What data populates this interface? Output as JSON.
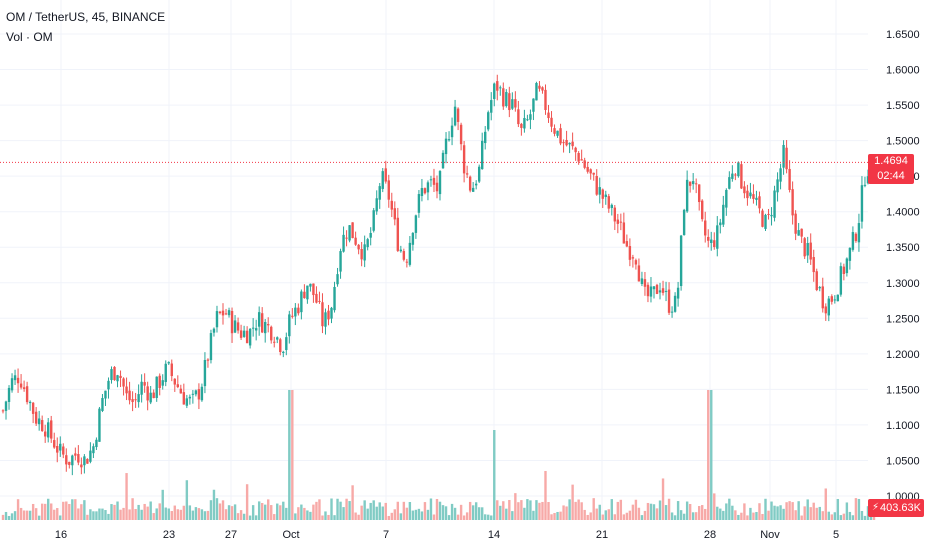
{
  "legend": {
    "symbol_line": "OM / TetherUS, 45, BINANCE",
    "volume_line": "Vol · OM"
  },
  "price_scale": {
    "ticks": [
      "1.6500",
      "1.6000",
      "1.5500",
      "1.5000",
      "1.4500",
      "1.4000",
      "1.3500",
      "1.3000",
      "1.2500",
      "1.2000",
      "1.1500",
      "1.1000",
      "1.0500",
      "1.0000"
    ]
  },
  "time_scale": {
    "ticks": [
      "16",
      "23",
      "27",
      "Oct",
      "7",
      "14",
      "21",
      "28",
      "Nov",
      "5"
    ]
  },
  "last_price": {
    "value": "1.4694",
    "countdown": "02:44",
    "line_value": 1.4694
  },
  "last_volume": {
    "value": "403.63K"
  },
  "colors": {
    "up": "#26a69a",
    "down": "#ef5350",
    "up_volume": "#80cbc4",
    "down_volume": "#f7a9a7",
    "grid": "#f0f3fa",
    "last_price": "#f23645"
  },
  "chart_data": {
    "type": "candlestick",
    "title": "OM / TetherUS, 45, BINANCE",
    "ylim": [
      0.975,
      1.675
    ],
    "y_ticks": [
      1.0,
      1.05,
      1.1,
      1.15,
      1.2,
      1.25,
      1.3,
      1.35,
      1.4,
      1.45,
      1.5,
      1.55,
      1.6,
      1.65
    ],
    "x_ticks": [
      "16",
      "23",
      "27",
      "Oct",
      "7",
      "14",
      "21",
      "28",
      "Nov",
      "5"
    ],
    "grid": true,
    "series": [
      {
        "name": "OM",
        "close_path": [
          1.12,
          1.16,
          1.17,
          1.14,
          1.11,
          1.1,
          1.08,
          1.06,
          1.05,
          1.06,
          1.05,
          1.07,
          1.13,
          1.17,
          1.18,
          1.14,
          1.13,
          1.16,
          1.14,
          1.16,
          1.18,
          1.16,
          1.14,
          1.13,
          1.15,
          1.2,
          1.25,
          1.26,
          1.24,
          1.23,
          1.23,
          1.25,
          1.24,
          1.23,
          1.21,
          1.25,
          1.27,
          1.3,
          1.28,
          1.24,
          1.27,
          1.35,
          1.38,
          1.36,
          1.34,
          1.38,
          1.45,
          1.42,
          1.36,
          1.33,
          1.39,
          1.43,
          1.44,
          1.43,
          1.5,
          1.55,
          1.47,
          1.43,
          1.46,
          1.54,
          1.58,
          1.56,
          1.55,
          1.51,
          1.53,
          1.57,
          1.55,
          1.52,
          1.5,
          1.49,
          1.48,
          1.46,
          1.44,
          1.42,
          1.4,
          1.38,
          1.35,
          1.34,
          1.28,
          1.28,
          1.3,
          1.27,
          1.27,
          1.43,
          1.45,
          1.38,
          1.35,
          1.37,
          1.43,
          1.47,
          1.44,
          1.42,
          1.4,
          1.38,
          1.43,
          1.48,
          1.4,
          1.36,
          1.34,
          1.3,
          1.27,
          1.28,
          1.31,
          1.34,
          1.38,
          1.46,
          1.47
        ]
      }
    ],
    "volume": {
      "name": "Vol · OM",
      "spikes": [
        {
          "near_x": "Oct",
          "level": "high"
        },
        {
          "near_x": "28",
          "level": "high"
        },
        {
          "near_x": "14",
          "level": "medium"
        }
      ]
    }
  }
}
